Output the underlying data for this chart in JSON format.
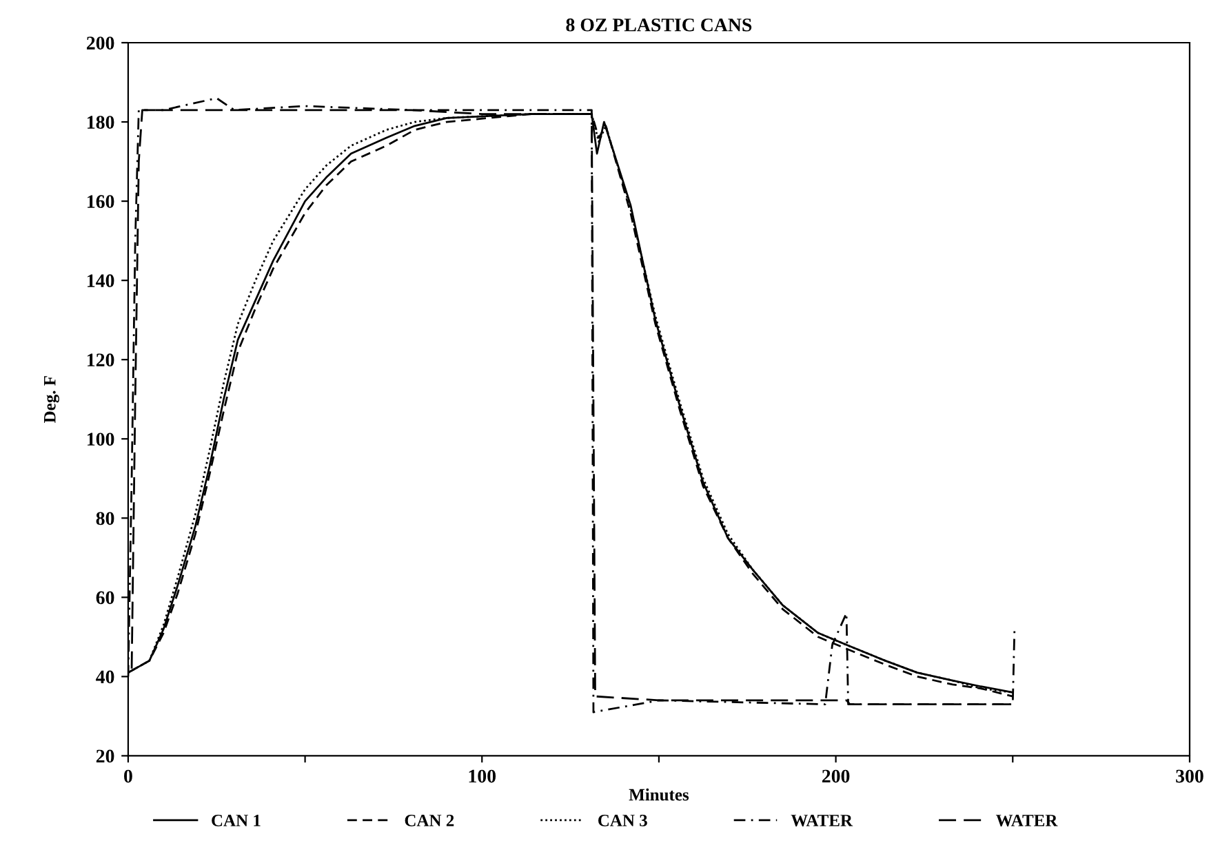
{
  "chart_data": {
    "type": "line",
    "title": "8 OZ PLASTIC CANS",
    "xlabel": "Minutes",
    "ylabel": "Deg. F",
    "xlim": [
      0,
      300
    ],
    "xticks": [
      0,
      {
        "value": 50,
        "label": null
      },
      100,
      {
        "value": 150,
        "label": null
      },
      200,
      {
        "value": 250,
        "label": null
      },
      300
    ],
    "ylim": [
      20,
      200
    ],
    "yticks": [
      20,
      40,
      60,
      80,
      100,
      120,
      140,
      160,
      180,
      200
    ],
    "grid": false,
    "legend": "bottom",
    "marker": "none",
    "series": [
      {
        "name": "CAN 1",
        "color": "#000000",
        "line_style": "solid",
        "x": [
          0,
          6,
          10,
          14,
          19,
          23,
          27,
          31,
          36,
          41,
          50,
          56,
          63,
          73,
          81,
          90,
          114,
          131,
          132.5,
          134.5,
          142,
          149,
          156,
          162.5,
          169.5,
          176.5,
          185,
          195,
          203,
          214,
          223,
          233,
          241,
          250
        ],
        "values": [
          41,
          44,
          52,
          63,
          78,
          93,
          110,
          125,
          135,
          145,
          160,
          166,
          172,
          176,
          179,
          181,
          182,
          182,
          172,
          180,
          159,
          130,
          108,
          89,
          75,
          67,
          58,
          51,
          48,
          44,
          41,
          39,
          37.5,
          36
        ]
      },
      {
        "name": "CAN 2",
        "color": "#000000",
        "line_style": "dashed",
        "x": [
          0,
          6,
          10,
          14,
          19,
          23,
          27,
          31,
          36,
          41,
          50,
          56,
          63,
          73,
          81,
          90,
          114,
          131,
          133,
          135,
          142,
          149,
          156,
          162.5,
          169.5,
          176.5,
          185,
          195,
          203,
          214,
          223,
          233,
          241,
          250
        ],
        "values": [
          41,
          44,
          51,
          61,
          76,
          91,
          107,
          122,
          133,
          143,
          157,
          164,
          170,
          174,
          178,
          180,
          182,
          182,
          176,
          179,
          157,
          129,
          107,
          88,
          75,
          66,
          57,
          50,
          47,
          43,
          40,
          38,
          37,
          35
        ]
      },
      {
        "name": "CAN 3",
        "color": "#000000",
        "line_style": "dotted",
        "x": [
          0,
          6,
          10,
          14,
          19,
          23,
          27,
          31,
          36,
          41,
          50,
          56,
          63,
          73,
          81,
          90,
          114,
          131,
          133,
          135,
          142,
          149,
          156,
          162.5,
          169.5,
          176.5,
          185,
          195,
          203,
          214,
          223,
          233,
          241,
          250
        ],
        "values": [
          41,
          44,
          53,
          65,
          81,
          97,
          114,
          129,
          140,
          150,
          163,
          169,
          174,
          178,
          180,
          181,
          182,
          182,
          175,
          179,
          158,
          131,
          109,
          90,
          76,
          67,
          58,
          51,
          48,
          44,
          41,
          39,
          37,
          36
        ]
      },
      {
        "name": "WATER",
        "color": "#000000",
        "line_style": "dashdot",
        "x": [
          0,
          1,
          2,
          3,
          10,
          25,
          30,
          50,
          80,
          100,
          131,
          131.5,
          150,
          197,
          199,
          203,
          203.5,
          230,
          250,
          250.5
        ],
        "values": [
          40,
          90,
          150,
          183,
          183,
          186,
          183,
          184,
          183,
          183,
          183,
          31,
          34,
          33,
          48,
          56,
          33,
          33,
          33,
          52
        ]
      },
      {
        "name": "WATER",
        "color": "#000000",
        "line_style": "longdash",
        "x": [
          1,
          2,
          3,
          4,
          10,
          40,
          80,
          100,
          131,
          132,
          150,
          197,
          203,
          204,
          230,
          250
        ],
        "values": [
          42,
          110,
          170,
          183,
          183,
          183,
          183,
          182,
          182,
          35,
          34,
          34,
          34,
          33,
          33,
          33
        ]
      }
    ]
  }
}
